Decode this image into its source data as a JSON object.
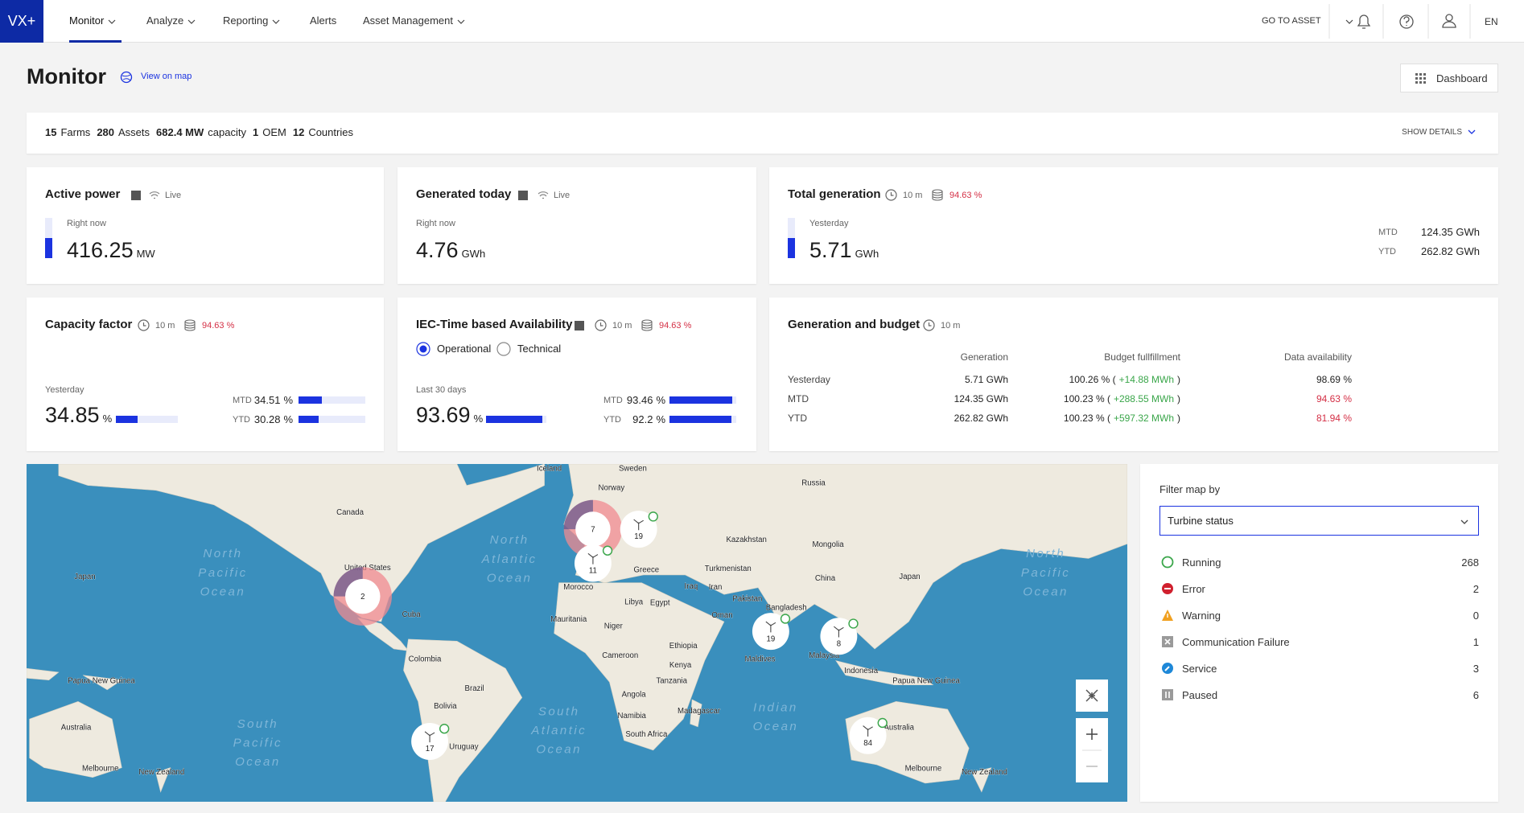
{
  "nav": {
    "logo": "VX+",
    "items": [
      "Monitor",
      "Analyze",
      "Reporting",
      "Alerts",
      "Asset Management"
    ],
    "go_to_asset": "GO TO ASSET",
    "language": "EN"
  },
  "header": {
    "title": "Monitor",
    "view_on_map": "View on map",
    "dashboard": "Dashboard"
  },
  "summary": {
    "items": [
      {
        "value": "15",
        "label": "Farms"
      },
      {
        "value": "280",
        "label": "Assets"
      },
      {
        "value": "682.4 MW",
        "label": "capacity"
      },
      {
        "value": "1",
        "label": "OEM"
      },
      {
        "value": "12",
        "label": "Countries"
      }
    ],
    "show_details": "SHOW DETAILS"
  },
  "cards": {
    "active_power": {
      "title": "Active power",
      "live": "Live",
      "period": "Right now",
      "value": "416.25",
      "unit": "MW"
    },
    "generated_today": {
      "title": "Generated today",
      "live": "Live",
      "period": "Right now",
      "value": "4.76",
      "unit": "GWh"
    },
    "total_generation": {
      "title": "Total generation",
      "refresh": "10 m",
      "availability": "94.63 %",
      "period": "Yesterday",
      "value": "5.71",
      "unit": "GWh",
      "rows": [
        {
          "label": "MTD",
          "value": "124.35 GWh"
        },
        {
          "label": "YTD",
          "value": "262.82 GWh"
        }
      ]
    },
    "capacity_factor": {
      "title": "Capacity factor",
      "refresh": "10 m",
      "availability": "94.63 %",
      "period": "Yesterday",
      "value": 34.85,
      "unit": "%",
      "rows": [
        {
          "label": "MTD",
          "value": 34.51,
          "unit": "%"
        },
        {
          "label": "YTD",
          "value": 30.28,
          "unit": "%"
        }
      ]
    },
    "iec_availability": {
      "title": "IEC-Time based Availability",
      "refresh": "10 m",
      "availability": "94.63 %",
      "options": [
        "Operational",
        "Technical"
      ],
      "period": "Last 30 days",
      "value": 93.69,
      "unit": "%",
      "rows": [
        {
          "label": "MTD",
          "value": 93.46,
          "unit": "%"
        },
        {
          "label": "YTD",
          "value": 92.2,
          "unit": "%"
        }
      ]
    },
    "generation_budget": {
      "title": "Generation and budget",
      "refresh": "10 m",
      "columns": [
        "Generation",
        "Budget fullfillment",
        "Data availability"
      ],
      "rows": [
        {
          "label": "Yesterday",
          "generation": "5.71 GWh",
          "budget": "100.26 % (",
          "delta": "+14.88 MWh",
          "close": ")",
          "data_availability": "98.69 %"
        },
        {
          "label": "MTD",
          "generation": "124.35 GWh",
          "budget": "100.23 % (",
          "delta": "+288.55 MWh",
          "close": ")",
          "data_availability": "94.63 %"
        },
        {
          "label": "YTD",
          "generation": "262.82 GWh",
          "budget": "100.23 % (",
          "delta": "+597.32 MWh",
          "close": ")",
          "data_availability": "81.94 %"
        }
      ]
    }
  },
  "map": {
    "labels": [
      "Iceland",
      "Sweden",
      "Norway",
      "Russia",
      "Canada",
      "Kazakhstan",
      "Mongolia",
      "Turkmenistan",
      "United States",
      "China",
      "Japan",
      "Japan",
      "Greece",
      "Morocco",
      "Iraq",
      "Iran",
      "Pakistan",
      "Libya",
      "Egypt",
      "Oman",
      "Cuba",
      "Bangladesh",
      "Mauritania",
      "Niger",
      "Ethiopia",
      "Cameroon",
      "Colombia",
      "Kenya",
      "Maldives",
      "Malaysia",
      "Indonesia",
      "Papua New Guinea",
      "Papua New Guinea",
      "Tanzania",
      "Brazil",
      "Angola",
      "Bolivia",
      "Madagascar",
      "Namibia",
      "Australia",
      "Australia",
      "South Africa",
      "Uruguay",
      "Melbourne",
      "New Zealand",
      "Melbourne",
      "New Zealand"
    ],
    "oceans": [
      [
        "North",
        "Pacific",
        "Ocean"
      ],
      [
        "North",
        "Atlantic",
        "Ocean"
      ],
      [
        "North",
        "Pacific",
        "Ocean"
      ],
      [
        "South",
        "Pacific",
        "Ocean"
      ],
      [
        "South",
        "Atlantic",
        "Ocean"
      ],
      [
        "Indian",
        "Ocean"
      ]
    ],
    "clusters": [
      "7",
      "11",
      "19",
      "2",
      "19",
      "8",
      "17",
      "84"
    ]
  },
  "filter": {
    "title": "Filter map by",
    "selected": "Turbine status",
    "statuses": [
      {
        "label": "Running",
        "count": "268",
        "color": "#3aa64a"
      },
      {
        "label": "Error",
        "count": "2",
        "color": "#d0202e"
      },
      {
        "label": "Warning",
        "count": "0",
        "color": "#f0a020"
      },
      {
        "label": "Communication Failure",
        "count": "1",
        "color": "#9a9a9a"
      },
      {
        "label": "Service",
        "count": "3",
        "color": "#1e88d8"
      },
      {
        "label": "Paused",
        "count": "6",
        "color": "#9a9a9a"
      }
    ]
  }
}
